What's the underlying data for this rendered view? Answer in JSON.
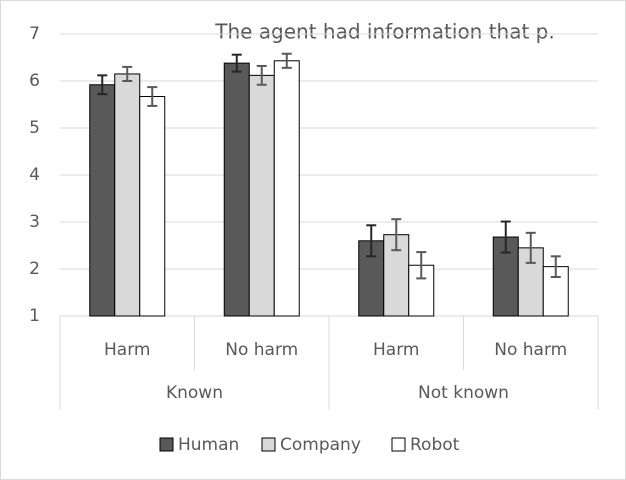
{
  "chart_data": {
    "type": "bar",
    "title": "The agent had information that p.",
    "category_groups": [
      {
        "label": "Known",
        "categories": [
          "Harm",
          "No harm"
        ]
      },
      {
        "label": "Not known",
        "categories": [
          "Harm",
          "No harm"
        ]
      }
    ],
    "series": [
      {
        "name": "Human",
        "color": "#595959",
        "error_color": "#262626",
        "values": [
          5.92,
          6.38,
          2.6,
          2.68
        ],
        "errors": [
          0.2,
          0.18,
          0.33,
          0.33
        ]
      },
      {
        "name": "Company",
        "color": "#d9d9d9",
        "error_color": "#595959",
        "values": [
          6.15,
          6.12,
          2.73,
          2.45
        ],
        "errors": [
          0.15,
          0.2,
          0.33,
          0.32
        ]
      },
      {
        "name": "Robot",
        "color": "#ffffff",
        "error_color": "#595959",
        "values": [
          5.67,
          6.43,
          2.08,
          2.05
        ],
        "errors": [
          0.2,
          0.15,
          0.28,
          0.22
        ]
      }
    ],
    "ylim": [
      1,
      7
    ],
    "yticks": [
      1,
      2,
      3,
      4,
      5,
      6,
      7
    ],
    "grid": true,
    "legend": "bottom"
  }
}
